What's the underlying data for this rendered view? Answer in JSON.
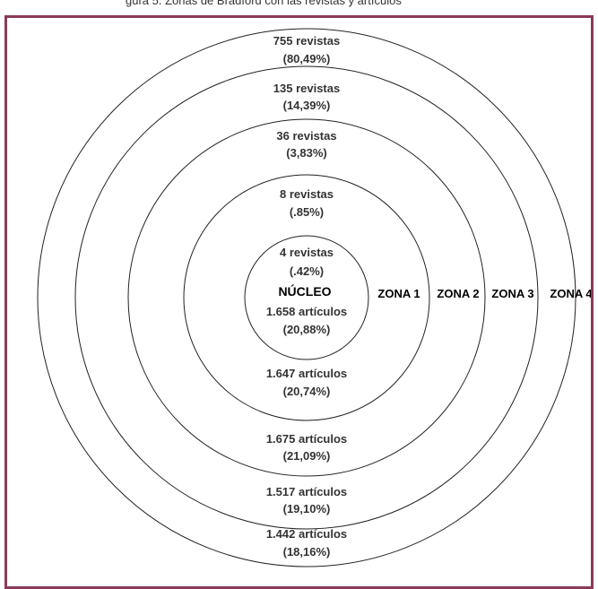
{
  "header_fragment": "gura 5. Zonas de Bradford con las revistas y artículos",
  "diagram": {
    "core": {
      "journals": "4 revistas",
      "journals_pct": "(.42%)",
      "title": "NÚCLEO",
      "articles": "1.658 artículos",
      "articles_pct": "(20,88%)"
    },
    "zone1": {
      "label": "ZONA 1",
      "journals": "8 revistas",
      "journals_pct": "(.85%)",
      "articles": "1.647 artículos",
      "articles_pct": "(20,74%)"
    },
    "zone2": {
      "label": "ZONA 2",
      "journals": "36 revistas",
      "journals_pct": "(3,83%)",
      "articles": "1.675 artículos",
      "articles_pct": "(21,09%)"
    },
    "zone3": {
      "label": "ZONA 3",
      "journals": "135 revistas",
      "journals_pct": "(14,39%)",
      "articles": "1.517 artículos",
      "articles_pct": "(19,10%)"
    },
    "zone4": {
      "label": "ZONA 4",
      "journals": "755 revistas",
      "journals_pct": "(80,49%)",
      "articles": "1.442 artículos",
      "articles_pct": "(18,16%)"
    }
  },
  "colors": {
    "frame_border": "#8b3a5b",
    "ring_stroke": "#222222",
    "text": "#333333"
  }
}
